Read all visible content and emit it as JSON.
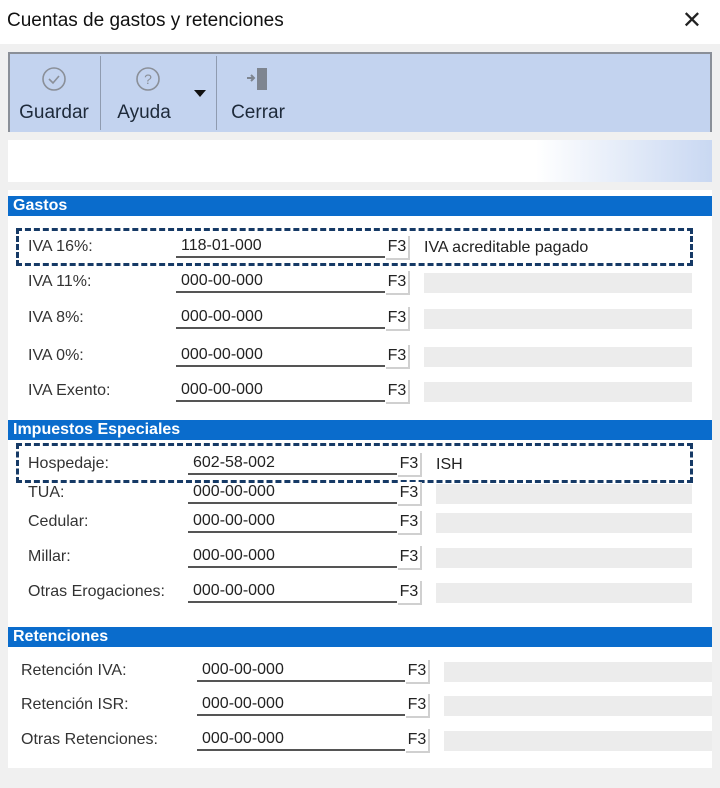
{
  "window": {
    "title": "Cuentas de gastos y retenciones",
    "close_icon": "close-icon"
  },
  "toolbar": {
    "save_label": "Guardar",
    "help_label": "Ayuda",
    "close_label": "Cerrar"
  },
  "colors": {
    "section_header": "#0a6ccc",
    "toolbar": "#c3d3ef",
    "highlight_border": "#163a66"
  },
  "sections": [
    {
      "title": "Gastos",
      "rows": [
        {
          "label": "IVA 16%:",
          "value": "118-01-000",
          "f3": "F3",
          "description": "IVA acreditable pagado",
          "highlighted": true
        },
        {
          "label": "IVA 11%:",
          "value": "000-00-000",
          "f3": "F3",
          "description": ""
        },
        {
          "label": "IVA 8%:",
          "value": "000-00-000",
          "f3": "F3",
          "description": ""
        },
        {
          "label": "IVA 0%:",
          "value": "000-00-000",
          "f3": "F3",
          "description": ""
        },
        {
          "label": "IVA Exento:",
          "value": "000-00-000",
          "f3": "F3",
          "description": ""
        }
      ]
    },
    {
      "title": "Impuestos Especiales",
      "rows": [
        {
          "label": "Hospedaje:",
          "value": "602-58-002",
          "f3": "F3",
          "description": "ISH",
          "highlighted": true
        },
        {
          "label": "TUA:",
          "value": "000-00-000",
          "f3": "F3",
          "description": ""
        },
        {
          "label": "Cedular:",
          "value": "000-00-000",
          "f3": "F3",
          "description": ""
        },
        {
          "label": "Millar:",
          "value": "000-00-000",
          "f3": "F3",
          "description": ""
        },
        {
          "label": "Otras Erogaciones:",
          "value": "000-00-000",
          "f3": "F3",
          "description": ""
        }
      ]
    },
    {
      "title": "Retenciones",
      "rows": [
        {
          "label": "Retención IVA:",
          "value": "000-00-000",
          "f3": "F3",
          "description": ""
        },
        {
          "label": "Retención ISR:",
          "value": "000-00-000",
          "f3": "F3",
          "description": ""
        },
        {
          "label": "Otras Retenciones:",
          "value": "000-00-000",
          "f3": "F3",
          "description": ""
        }
      ]
    }
  ]
}
